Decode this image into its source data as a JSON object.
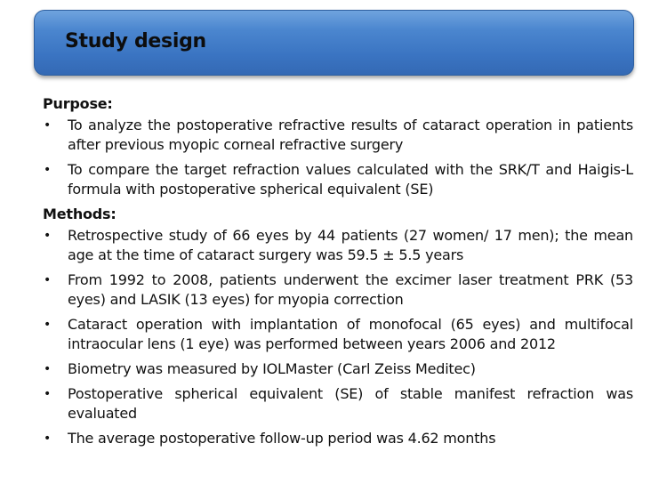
{
  "title": "Study design",
  "sections": [
    {
      "heading": "Purpose:",
      "items": [
        "To analyze the postoperative refractive results of cataract operation in patients after previous myopic corneal refractive surgery",
        "To compare the target refraction values calculated with the SRK/T and Haigis-L formula with postoperative spherical equivalent (SE)"
      ]
    },
    {
      "heading": "Methods:",
      "items": [
        "Retrospective study of 66 eyes by 44 patients (27 women/ 17 men); the mean age at the time of cataract surgery was 59.5 ± 5.5 years",
        "From 1992 to 2008, patients underwent the excimer laser treatment PRK (53 eyes) and LASIK (13 eyes) for myopia correction",
        "Cataract operation with implantation of monofocal (65 eyes) and multifocal intraocular lens (1 eye) was performed between years 2006 and 2012",
        "Biometry was measured by IOLMaster (Carl Zeiss Meditec)",
        "Postoperative spherical equivalent (SE) of stable manifest refraction was evaluated",
        "The average postoperative follow-up period was 4.62 months"
      ]
    }
  ],
  "bullet_glyph": "•",
  "colors": {
    "title_bar_top": "#6fa3de",
    "title_bar_bottom": "#3469b4",
    "text": "#111111"
  }
}
